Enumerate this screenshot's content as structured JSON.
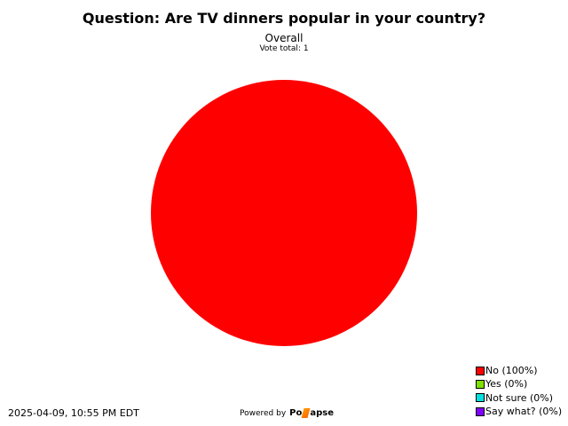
{
  "chart_data": {
    "type": "pie",
    "title": "Question: Are TV dinners popular in your country?",
    "subtitle": "Overall",
    "vote_total": "Vote total: 1",
    "categories": [
      "No",
      "Yes",
      "Not sure",
      "Say what?"
    ],
    "values": [
      100,
      0,
      0,
      0
    ],
    "legend_labels": [
      "No (100%)",
      "Yes (0%)",
      "Not sure (0%)",
      "Say what? (0%)"
    ],
    "colors": [
      "#ff0000",
      "#80e000",
      "#00e0e0",
      "#8000ff"
    ],
    "legend_position": "bottom-right"
  },
  "footer": {
    "timestamp": "2025-04-09, 10:55 PM EDT",
    "powered_by": "Powered by",
    "logo_text": "Pollapse",
    "logo_left": "Po",
    "logo_right": "apse"
  }
}
